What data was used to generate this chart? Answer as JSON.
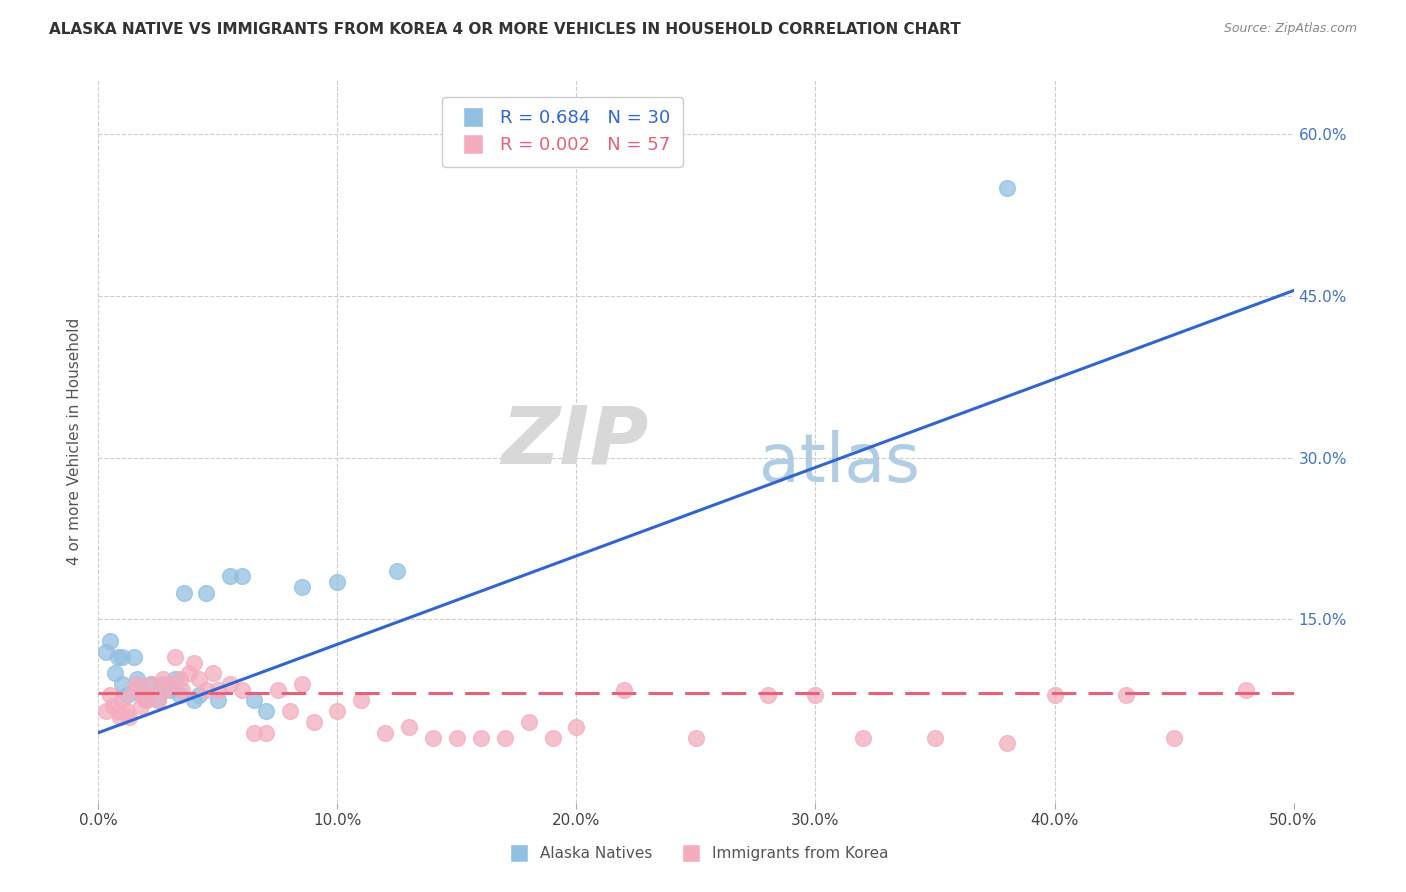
{
  "title": "ALASKA NATIVE VS IMMIGRANTS FROM KOREA 4 OR MORE VEHICLES IN HOUSEHOLD CORRELATION CHART",
  "source": "Source: ZipAtlas.com",
  "ylabel": "4 or more Vehicles in Household",
  "xlim": [
    0.0,
    0.5
  ],
  "ylim": [
    -0.02,
    0.65
  ],
  "xtick_labels": [
    "0.0%",
    "10.0%",
    "20.0%",
    "30.0%",
    "40.0%",
    "50.0%"
  ],
  "xtick_vals": [
    0.0,
    0.1,
    0.2,
    0.3,
    0.4,
    0.5
  ],
  "ytick_vals": [
    0.15,
    0.3,
    0.45,
    0.6
  ],
  "ytick_labels_right": [
    "15.0%",
    "30.0%",
    "45.0%",
    "60.0%"
  ],
  "right_ytick_color": "#4472c4",
  "alaska_color": "#92C0E0",
  "korea_color": "#F4ACBE",
  "alaska_line_color": "#3366CC",
  "korea_line_color": "#E8607A",
  "alaska_R": 0.684,
  "alaska_N": 30,
  "korea_R": 0.002,
  "korea_N": 57,
  "legend_label_alaska": "Alaska Natives",
  "legend_label_korea": "Immigrants from Korea",
  "alaska_x": [
    0.003,
    0.005,
    0.007,
    0.008,
    0.01,
    0.01,
    0.012,
    0.015,
    0.016,
    0.018,
    0.02,
    0.022,
    0.025,
    0.027,
    0.03,
    0.032,
    0.034,
    0.036,
    0.04,
    0.042,
    0.045,
    0.05,
    0.055,
    0.06,
    0.065,
    0.07,
    0.085,
    0.1,
    0.125,
    0.38
  ],
  "alaska_y": [
    0.12,
    0.13,
    0.1,
    0.115,
    0.09,
    0.115,
    0.08,
    0.115,
    0.095,
    0.08,
    0.075,
    0.09,
    0.075,
    0.09,
    0.085,
    0.095,
    0.08,
    0.175,
    0.075,
    0.08,
    0.175,
    0.075,
    0.19,
    0.19,
    0.075,
    0.065,
    0.18,
    0.185,
    0.195,
    0.55
  ],
  "alaska_line_x": [
    0.0,
    0.5
  ],
  "alaska_line_y": [
    0.045,
    0.455
  ],
  "korea_line_x": [
    0.0,
    0.5
  ],
  "korea_line_y": [
    0.082,
    0.082
  ],
  "korea_x": [
    0.003,
    0.005,
    0.006,
    0.008,
    0.009,
    0.01,
    0.012,
    0.013,
    0.015,
    0.016,
    0.018,
    0.019,
    0.02,
    0.022,
    0.025,
    0.027,
    0.028,
    0.03,
    0.032,
    0.034,
    0.035,
    0.038,
    0.04,
    0.042,
    0.045,
    0.048,
    0.05,
    0.055,
    0.06,
    0.065,
    0.07,
    0.075,
    0.08,
    0.085,
    0.09,
    0.1,
    0.11,
    0.12,
    0.13,
    0.14,
    0.15,
    0.16,
    0.17,
    0.18,
    0.19,
    0.2,
    0.22,
    0.25,
    0.28,
    0.3,
    0.32,
    0.35,
    0.38,
    0.4,
    0.43,
    0.45,
    0.48
  ],
  "korea_y": [
    0.065,
    0.08,
    0.07,
    0.065,
    0.06,
    0.075,
    0.065,
    0.06,
    0.085,
    0.09,
    0.07,
    0.08,
    0.075,
    0.09,
    0.075,
    0.095,
    0.085,
    0.09,
    0.115,
    0.095,
    0.085,
    0.1,
    0.11,
    0.095,
    0.085,
    0.1,
    0.085,
    0.09,
    0.085,
    0.045,
    0.045,
    0.085,
    0.065,
    0.09,
    0.055,
    0.065,
    0.075,
    0.045,
    0.05,
    0.04,
    0.04,
    0.04,
    0.04,
    0.055,
    0.04,
    0.05,
    0.085,
    0.04,
    0.08,
    0.08,
    0.04,
    0.04,
    0.035,
    0.08,
    0.08,
    0.04,
    0.085
  ],
  "background_color": "#ffffff",
  "grid_color": "#cccccc"
}
